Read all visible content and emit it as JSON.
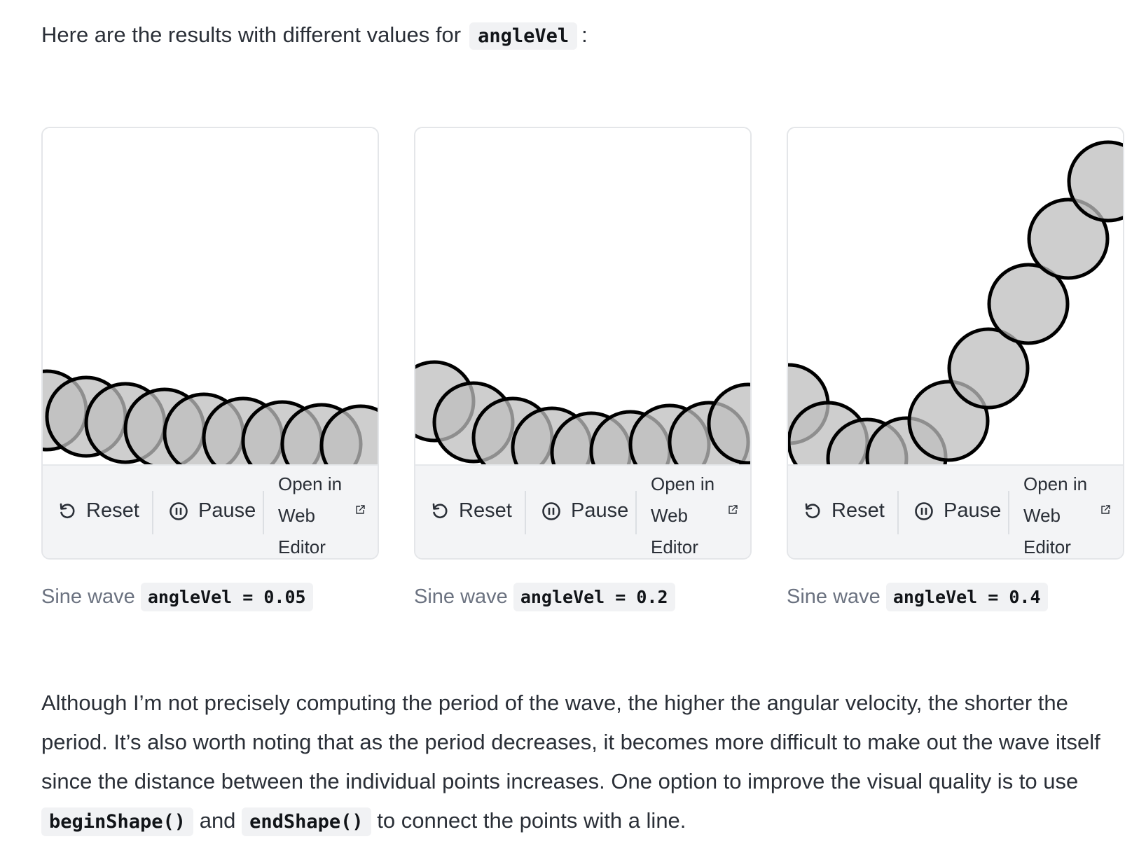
{
  "intro": {
    "text": "Here are the results with different values for",
    "code": "angleVel",
    "after": ":"
  },
  "panels": [
    {
      "reset_label": "Reset",
      "pause_label": "Pause",
      "open_label": "Open in Web Editor",
      "caption_text": "Sine wave",
      "caption_code": "angleVel = 0.05",
      "angle_vel": 0.05
    },
    {
      "reset_label": "Reset",
      "pause_label": "Pause",
      "open_label": "Open in Web Editor",
      "caption_text": "Sine wave",
      "caption_code": "angleVel = 0.2",
      "angle_vel": 0.2
    },
    {
      "reset_label": "Reset",
      "pause_label": "Pause",
      "open_label": "Open in Web Editor",
      "caption_text": "Sine wave",
      "caption_code": "angleVel = 0.4",
      "angle_vel": 0.4
    }
  ],
  "paragraph": {
    "part1": "Although I’m not precisely computing the period of the wave, the higher the angular velocity, the shorter the period. It’s also worth noting that as the period decreases, it becomes more difficult to make out the wave itself since the distance between the individual points increases. One option to improve the visual quality is to use",
    "code1": "beginShape()",
    "mid": "and",
    "code2": "endShape()",
    "part2": "to connect the points with a line."
  },
  "colors": {
    "circle_fill": "#bdbdbd",
    "circle_stroke": "#000000",
    "toolbar_bg": "#f3f4f6",
    "code_bg": "#f1f2f4"
  },
  "icons": {
    "reset": "refresh-icon",
    "pause": "pause-circle-icon",
    "open": "external-link-icon"
  }
}
